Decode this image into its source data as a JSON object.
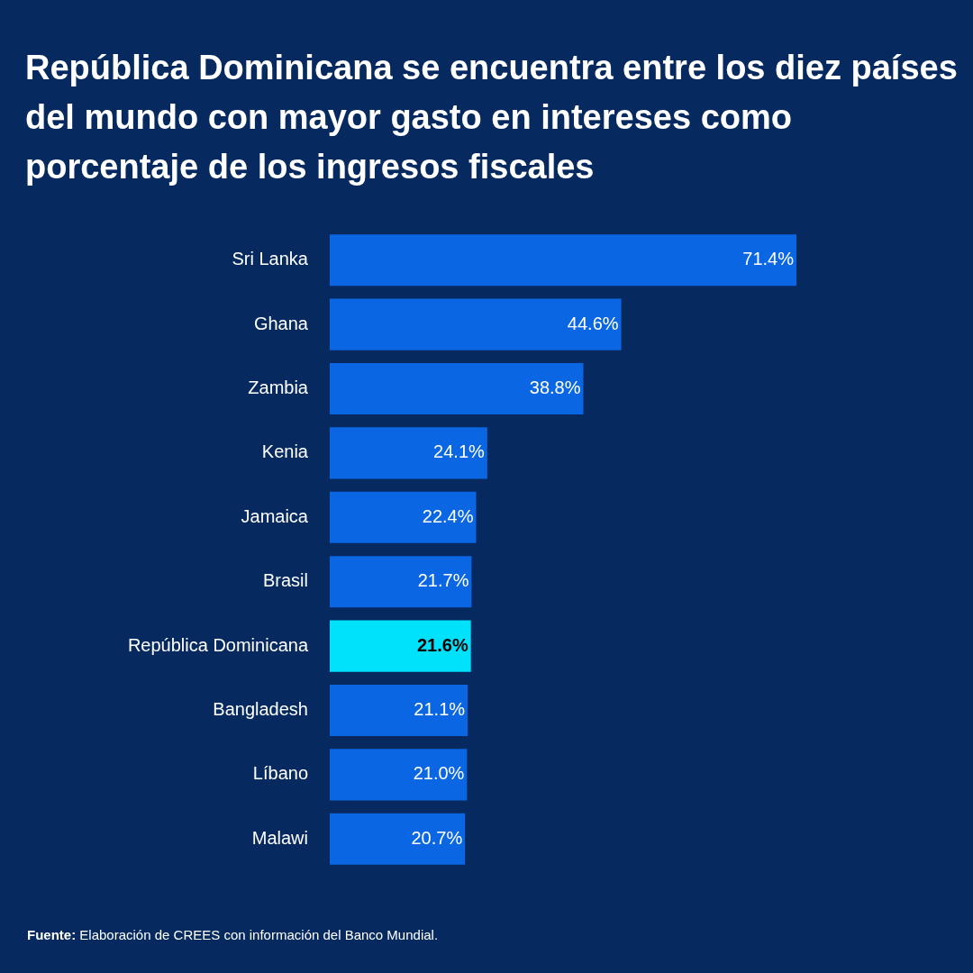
{
  "chart_data": {
    "type": "bar",
    "orientation": "horizontal",
    "title": "República Dominicana se encuentra entre los diez países del mundo con mayor gasto en intereses como porcentaje de los ingresos fiscales",
    "categories": [
      "Sri Lanka",
      "Ghana",
      "Zambia",
      "Kenia",
      "Jamaica",
      "Brasil",
      "República Dominicana",
      "Bangladesh",
      "Líbano",
      "Malawi"
    ],
    "values": [
      71.4,
      44.6,
      38.8,
      24.1,
      22.4,
      21.7,
      21.6,
      21.1,
      21.0,
      20.7
    ],
    "value_labels": [
      "71.4%",
      "44.6%",
      "38.8%",
      "24.1%",
      "22.4%",
      "21.7%",
      "21.6%",
      "21.1%",
      "21.0%",
      "20.7%"
    ],
    "colors": [
      "#0b66e4",
      "#0b66e4",
      "#0b66e4",
      "#0b66e4",
      "#0b66e4",
      "#0b66e4",
      "#00e1fb",
      "#0b66e4",
      "#0b66e4",
      "#0b66e4"
    ],
    "grid": false,
    "legend": false,
    "annotations": [
      "Fuente: Elaboración de CREES con información del Banco Mundial."
    ]
  }
}
